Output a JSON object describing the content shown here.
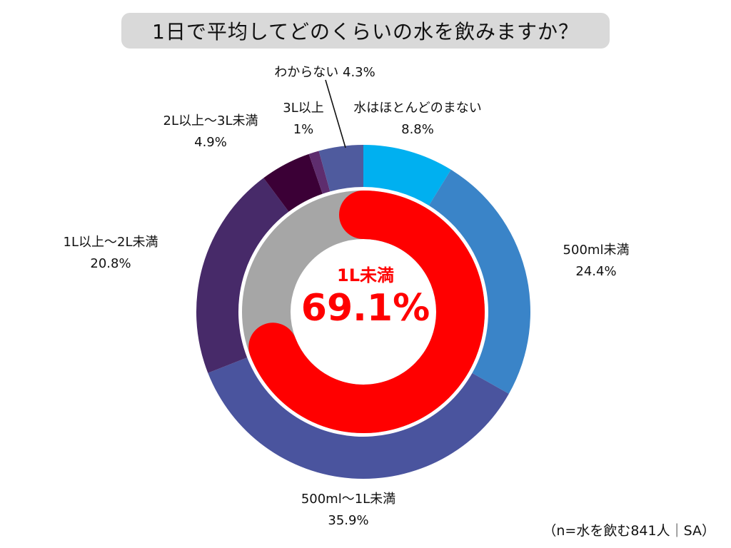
{
  "title": "1日で平均してどのくらいの水を飲みますか？",
  "note": "（n=水を飲む841人｜SA）",
  "chart_data": {
    "type": "pie",
    "subtype": "donut",
    "title": "1日で平均してどのくらいの水を飲みますか？",
    "series": [
      {
        "ring": "outer",
        "categories": [
          "水はほとんどのまない",
          "500ml未満",
          "500ml〜1L未満",
          "1L以上〜2L未満",
          "2L以上〜3L未満",
          "3L以上",
          "わからない"
        ],
        "values": [
          8.8,
          24.4,
          35.9,
          20.8,
          4.9,
          1,
          4.3
        ],
        "value_labels": [
          "8.8%",
          "24.4%",
          "35.9%",
          "20.8%",
          "4.9%",
          "1%",
          "4.3%"
        ],
        "colors": [
          "#00b0f0",
          "#3a84c8",
          "#4a549e",
          "#472a69",
          "#3b0036",
          "#5e2d6e",
          "#4f5b9e"
        ]
      },
      {
        "ring": "inner",
        "categories": [
          "1L未満",
          "other"
        ],
        "values": [
          69.1,
          30.9
        ],
        "colors": [
          "#ff0000",
          "#a6a6a6"
        ]
      }
    ],
    "highlight": {
      "name": "1L未満",
      "value_label": "69.1%",
      "color": "#ff0000"
    }
  }
}
